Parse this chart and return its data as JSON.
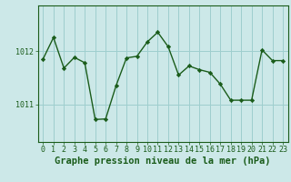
{
  "x": [
    0,
    1,
    2,
    3,
    4,
    5,
    6,
    7,
    8,
    9,
    10,
    11,
    12,
    13,
    14,
    15,
    16,
    17,
    18,
    19,
    20,
    21,
    22,
    23
  ],
  "y": [
    1011.85,
    1012.25,
    1011.68,
    1011.88,
    1011.78,
    1010.72,
    1010.73,
    1011.35,
    1011.87,
    1011.9,
    1012.17,
    1012.35,
    1012.08,
    1011.55,
    1011.72,
    1011.65,
    1011.6,
    1011.38,
    1011.08,
    1011.08,
    1011.08,
    1012.02,
    1011.82,
    1011.82
  ],
  "line_color": "#1a5c1a",
  "marker": "D",
  "marker_size": 2.2,
  "bg_color": "#cce8e8",
  "grid_color": "#9ecece",
  "axis_color": "#1a5c1a",
  "xlabel": "Graphe pression niveau de la mer (hPa)",
  "xlabel_fontsize": 7.5,
  "ytick_labels": [
    "1011",
    "1012"
  ],
  "ytick_positions": [
    1011,
    1012
  ],
  "ylim": [
    1010.3,
    1012.85
  ],
  "xlim": [
    -0.5,
    23.5
  ],
  "tick_fontsize": 6.0,
  "linewidth": 1.0
}
